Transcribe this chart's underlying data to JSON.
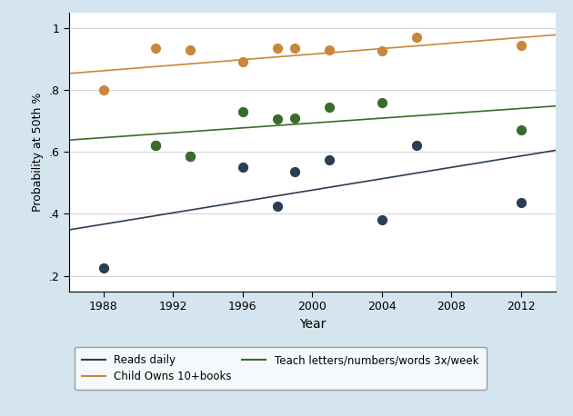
{
  "xlabel": "Year",
  "ylabel": "Probability at 50th %",
  "xlim": [
    1986,
    2014
  ],
  "ylim": [
    0.15,
    1.05
  ],
  "yticks": [
    0.2,
    0.4,
    0.6,
    0.8,
    1.0
  ],
  "ytick_labels": [
    ".2",
    ".4",
    ".6",
    ".8",
    "1"
  ],
  "xticks": [
    1988,
    1992,
    1996,
    2000,
    2004,
    2008,
    2012
  ],
  "reads_daily_dots_x": [
    1988,
    1991,
    1993,
    1996,
    1998,
    1999,
    2001,
    2004,
    2006,
    2012
  ],
  "reads_daily_dots_y": [
    0.225,
    0.62,
    0.585,
    0.55,
    0.425,
    0.535,
    0.575,
    0.38,
    0.62,
    0.435
  ],
  "reads_daily_line_x": [
    1986,
    2014
  ],
  "reads_daily_line_y": [
    0.348,
    0.605
  ],
  "books_dots_x": [
    1988,
    1991,
    1993,
    1996,
    1998,
    1999,
    2001,
    2004,
    2006,
    2012
  ],
  "books_dots_y": [
    0.8,
    0.935,
    0.93,
    0.89,
    0.935,
    0.935,
    0.93,
    0.925,
    0.97,
    0.945
  ],
  "books_line_x": [
    1986,
    2014
  ],
  "books_line_y": [
    0.853,
    0.978
  ],
  "teach_dots_x": [
    1991,
    1993,
    1996,
    1998,
    1999,
    2001,
    2004,
    2012
  ],
  "teach_dots_y": [
    0.62,
    0.585,
    0.73,
    0.705,
    0.71,
    0.745,
    0.76,
    0.67
  ],
  "teach_line_x": [
    1986,
    2014
  ],
  "teach_line_y": [
    0.638,
    0.748
  ],
  "dark_navy": "#2b3d52",
  "orange": "#c8873a",
  "green": "#3a6b2a",
  "fig_bg_color": "#d4e5ef",
  "plot_bg": "#ffffff",
  "legend_labels": [
    "Reads daily",
    "Child Owns 10+books",
    "Teach letters/numbers/words 3x/week"
  ]
}
